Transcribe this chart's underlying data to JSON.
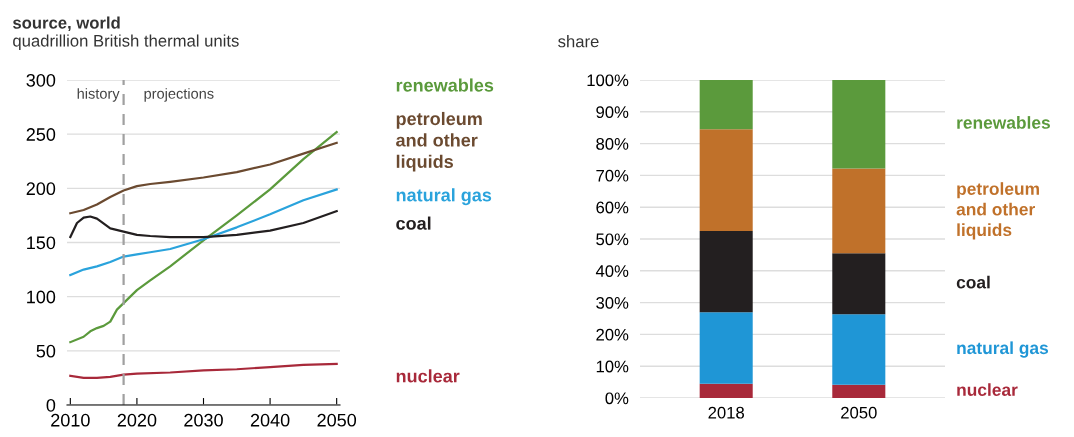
{
  "chart_data": [
    {
      "type": "line",
      "title": "source, world",
      "subtitle": "quadrillion British thermal units",
      "xlim": [
        2009.5,
        2050.5
      ],
      "xticks": [
        2010,
        2020,
        2030,
        2040,
        2050
      ],
      "ylim": [
        0,
        300
      ],
      "yticks": [
        0,
        50,
        100,
        150,
        200,
        250,
        300
      ],
      "grid": "y",
      "legend": false,
      "ref_lines": [
        {
          "axis": "x",
          "value": 2018,
          "label": null,
          "color": "#a0a0a0",
          "line_style": "dashed"
        }
      ],
      "annotations": [
        "history",
        "projections"
      ],
      "series": [
        {
          "name": "renewables",
          "color": "#5b9a3c",
          "x": [
            2010,
            2012,
            2013,
            2014,
            2015,
            2016,
            2017,
            2018,
            2020,
            2022,
            2025,
            2030,
            2035,
            2040,
            2045,
            2050
          ],
          "values": [
            58,
            63,
            68,
            71,
            73,
            77,
            88,
            94,
            106,
            115,
            128,
            152,
            175,
            199,
            227,
            252
          ]
        },
        {
          "name": "petroleum\nand other\nliquids",
          "color": "#6b4a30",
          "x": [
            2010,
            2012,
            2014,
            2016,
            2018,
            2020,
            2022,
            2025,
            2030,
            2035,
            2040,
            2045,
            2050
          ],
          "values": [
            177,
            180,
            185,
            192,
            198,
            202,
            204,
            206,
            210,
            215,
            222,
            232,
            242
          ]
        },
        {
          "name": "natural gas",
          "color": "#2aa3dc",
          "x": [
            2010,
            2012,
            2014,
            2016,
            2018,
            2020,
            2022,
            2025,
            2030,
            2035,
            2040,
            2045,
            2050
          ],
          "values": [
            120,
            125,
            128,
            132,
            137,
            139,
            141,
            144,
            153,
            164,
            176,
            189,
            199
          ]
        },
        {
          "name": "coal",
          "color": "#231f20",
          "x": [
            2010,
            2011,
            2012,
            2013,
            2014,
            2016,
            2018,
            2020,
            2022,
            2025,
            2030,
            2035,
            2040,
            2045,
            2050
          ],
          "values": [
            155,
            168,
            173,
            174,
            172,
            163,
            160,
            157,
            156,
            155,
            155,
            157,
            161,
            168,
            179
          ]
        },
        {
          "name": "nuclear",
          "color": "#a8293a",
          "x": [
            2010,
            2012,
            2014,
            2016,
            2018,
            2020,
            2025,
            2030,
            2035,
            2040,
            2045,
            2050
          ],
          "values": [
            27,
            25,
            25,
            26,
            28,
            29,
            30,
            32,
            33,
            35,
            37,
            38
          ]
        }
      ]
    },
    {
      "type": "bar",
      "title": "share",
      "stacked": true,
      "categories": [
        "2018",
        "2050"
      ],
      "ylim": [
        0,
        100
      ],
      "yticks": [
        {
          "value": 0,
          "label": "0%"
        },
        {
          "value": 10,
          "label": "10%"
        },
        {
          "value": 20,
          "label": "20%"
        },
        {
          "value": 30,
          "label": "30%"
        },
        {
          "value": 40,
          "label": "40%"
        },
        {
          "value": 50,
          "label": "50%"
        },
        {
          "value": 60,
          "label": "60%"
        },
        {
          "value": 70,
          "label": "70%"
        },
        {
          "value": 80,
          "label": "80%"
        },
        {
          "value": 90,
          "label": "90%"
        },
        {
          "value": 100,
          "label": "100%"
        }
      ],
      "grid": "y",
      "legend": false,
      "series": [
        {
          "name": "nuclear",
          "color": "#a8293a",
          "values": [
            4.5,
            4.2
          ]
        },
        {
          "name": "natural gas",
          "color": "#1f96d6",
          "values": [
            22.5,
            22.1
          ]
        },
        {
          "name": "coal",
          "color": "#231f20",
          "values": [
            25.5,
            19.2
          ]
        },
        {
          "name": "petroleum\nand other\nliquids",
          "color": "#c0712a",
          "values": [
            32.0,
            26.7
          ]
        },
        {
          "name": "renewables",
          "color": "#5b9a3c",
          "values": [
            15.5,
            27.8
          ]
        }
      ]
    }
  ]
}
